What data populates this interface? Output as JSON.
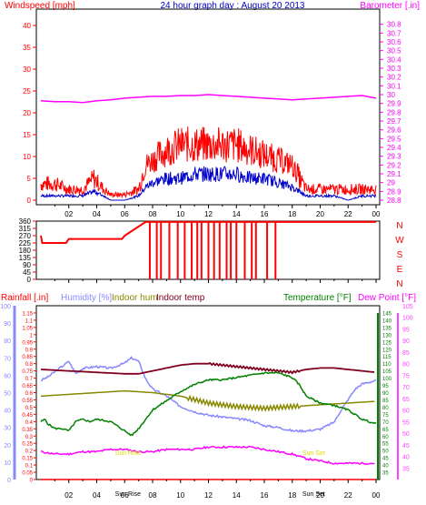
{
  "colors": {
    "background": "#ffffff",
    "frame": "#000000",
    "title": "#0000cc",
    "wind": "#ff0000",
    "gust_avg": "#0000cc",
    "barometer": "#ff00ff",
    "direction": "#ff0000",
    "rain": "#ff0000",
    "humidity": "#8888ff",
    "indoor_hum": "#888800",
    "indoor_temp": "#800020",
    "temperature": "#008000",
    "dewpoint": "#ff00ff",
    "rain_line": "#ff0000",
    "events": "#dddd00"
  },
  "chart_data": [
    {
      "type": "line",
      "title": "24 hour graph day : August 20 2013",
      "ylabel_left": "Windspeed [mph]",
      "ylabel_right": "Barometer [.in]",
      "x_ticks": [
        "02",
        "04",
        "06",
        "08",
        "10",
        "12",
        "14",
        "16",
        "18",
        "20",
        "22",
        "00"
      ],
      "x_range": [
        0,
        24
      ],
      "y_left_range": [
        0,
        40
      ],
      "y_left_ticks": [
        "0",
        "5",
        "10",
        "15",
        "20",
        "25",
        "30",
        "35",
        "40"
      ],
      "y_right_range": [
        28.8,
        30.9
      ],
      "y_right_ticks": [
        "28.8",
        "28.9",
        "29",
        "29.1",
        "29.2",
        "29.3",
        "29.4",
        "29.5",
        "29.6",
        "29.7",
        "29.8",
        "29.9",
        "30",
        "30.1",
        "30.2",
        "30.3",
        "30.4",
        "30.5",
        "30.6",
        "30.7",
        "30.8"
      ],
      "series": [
        {
          "axis": "right",
          "x": [
            0,
            1,
            2,
            3,
            4,
            5,
            6,
            7,
            8,
            9,
            10,
            11,
            12,
            13,
            14,
            15,
            16,
            17,
            18,
            19,
            20,
            21,
            22,
            23,
            24
          ],
          "values": [
            29.93,
            29.92,
            29.92,
            29.91,
            29.93,
            29.94,
            29.96,
            29.97,
            29.98,
            29.98,
            29.99,
            29.99,
            30.0,
            29.99,
            29.98,
            29.97,
            29.96,
            29.95,
            29.94,
            29.95,
            29.96,
            29.97,
            29.98,
            29.99,
            29.96
          ]
        },
        {
          "axis": "left",
          "x": [
            0,
            1,
            2,
            3,
            3.8,
            4.5,
            5,
            6,
            7,
            7.5,
            8,
            9,
            10,
            11,
            12,
            13,
            14,
            15,
            16,
            17,
            18,
            18.5,
            19,
            20,
            21,
            22,
            23,
            24
          ],
          "values": [
            3,
            3,
            2,
            2,
            4,
            2,
            1,
            1,
            2,
            7,
            8,
            10,
            11,
            11,
            11,
            11,
            11,
            10,
            9,
            8,
            7,
            4,
            2,
            2,
            2,
            2,
            2,
            2
          ]
        },
        {
          "axis": "left",
          "x": [
            0,
            1,
            2,
            3,
            3.8,
            4.5,
            5,
            6,
            7,
            7.5,
            8,
            9,
            10,
            11,
            12,
            13,
            14,
            15,
            16,
            17,
            18,
            18.5,
            19,
            20,
            21,
            22,
            23,
            24
          ],
          "values": [
            1,
            1,
            1,
            1,
            2,
            1,
            0,
            0,
            1,
            3,
            4,
            5,
            5,
            6,
            6,
            6,
            6,
            5,
            5,
            4,
            3,
            2,
            1,
            1,
            1,
            0,
            1,
            1
          ]
        }
      ]
    },
    {
      "type": "line",
      "ylabel_right": [
        "N",
        "W",
        "S",
        "E",
        "N"
      ],
      "y_range": [
        0,
        360
      ],
      "y_ticks": [
        "0",
        "45",
        "90",
        "135",
        "180",
        "225",
        "270",
        "315",
        "360"
      ],
      "series": [
        {
          "x": [
            0,
            0.1,
            1.8,
            2.0,
            5.8,
            6.0,
            7.5,
            24
          ],
          "values": [
            270,
            225,
            225,
            250,
            250,
            270,
            355,
            355
          ]
        }
      ],
      "north_drop_times": [
        7.8,
        8.3,
        8.6,
        9.2,
        9.8,
        10.3,
        10.8,
        11.2,
        11.5,
        12.0,
        12.4,
        12.8,
        13.3,
        13.6,
        14.0,
        14.6,
        15.1,
        15.4,
        16.2,
        16.8
      ]
    },
    {
      "type": "line",
      "legend": [
        "Rainfall [.in]",
        "Humidity [%]",
        "Indoor hum",
        "Indoor temp",
        "Temperature [°F]",
        "Dew Point [°F]"
      ],
      "rain_range": [
        0,
        1.2
      ],
      "rain_ticks": [
        "0",
        "0.05",
        "0.1",
        "0.15",
        "0.2",
        "0.25",
        "0.3",
        "0.35",
        "0.4",
        "0.45",
        "0.5",
        "0.55",
        "0.6",
        "0.65",
        "0.7",
        "0.75",
        "0.8",
        "0.85",
        "0.9",
        "0.95",
        "1",
        "1.05",
        "1.1",
        "1.15"
      ],
      "humidity_range": [
        0,
        100
      ],
      "humidity_ticks": [
        "0",
        "10",
        "20",
        "30",
        "40",
        "50",
        "60",
        "70",
        "80",
        "90",
        "100"
      ],
      "temp_range": [
        30,
        150
      ],
      "temp_ticks": [
        "35",
        "40",
        "45",
        "50",
        "55",
        "60",
        "65",
        "70",
        "75",
        "80",
        "85",
        "90",
        "95",
        "100",
        "105",
        "110",
        "115",
        "120",
        "125",
        "130",
        "135",
        "140",
        "145"
      ],
      "dew_range": [
        30,
        105
      ],
      "dew_ticks": [
        "35",
        "40",
        "45",
        "50",
        "55",
        "60",
        "65",
        "70",
        "75",
        "80",
        "85",
        "90",
        "95",
        "100",
        "105"
      ],
      "event_labels": [
        {
          "text": "Sun Rise",
          "x": 6.3
        },
        {
          "text": "Sun Set",
          "x": 19.6
        }
      ],
      "bottom_labels": [
        "Sun Rise",
        "Sun Set"
      ],
      "series": [
        {
          "name": "Rainfall [.in]",
          "axis": "rain",
          "x": [
            0,
            24
          ],
          "values": [
            0,
            0
          ]
        },
        {
          "name": "Humidity [%]",
          "axis": "humidity",
          "x": [
            0,
            0.5,
            1,
            1.5,
            2,
            2.5,
            3,
            4,
            5,
            6,
            6.5,
            7,
            7.5,
            8,
            9,
            10,
            11,
            12,
            13,
            14,
            15,
            16,
            17,
            18,
            19,
            20,
            21,
            21.5,
            22,
            22.5,
            23,
            24
          ],
          "values": [
            57,
            59,
            62,
            65,
            68,
            61,
            64,
            65,
            64,
            67,
            70,
            68,
            58,
            52,
            48,
            42,
            39,
            37,
            36,
            35,
            34,
            31,
            30,
            28,
            28,
            29,
            33,
            40,
            46,
            52,
            55,
            57
          ]
        },
        {
          "name": "Indoor hum",
          "axis": "humidity",
          "x": [
            0,
            2,
            4,
            6,
            8,
            10,
            11,
            12,
            14,
            16,
            18,
            20,
            22,
            24
          ],
          "values": [
            48,
            49,
            50,
            51,
            50,
            48,
            46,
            44,
            42,
            41,
            42,
            43,
            44,
            45
          ]
        },
        {
          "name": "Indoor temp",
          "axis": "temp",
          "x": [
            0,
            2,
            4,
            6,
            7,
            8,
            9,
            10,
            11,
            12,
            13,
            14,
            15,
            16,
            17,
            18,
            19,
            20,
            21,
            22,
            23,
            24
          ],
          "values": [
            106,
            105,
            104,
            103,
            103,
            105,
            107,
            109,
            110,
            110,
            109,
            108,
            107,
            106,
            105,
            104,
            106,
            107,
            107,
            106,
            105,
            104
          ]
        },
        {
          "name": "Temperature [°F]",
          "axis": "dew",
          "x": [
            0,
            0.3,
            0.5,
            1,
            1.5,
            2,
            2.5,
            3,
            3.5,
            4,
            5,
            6,
            6.5,
            7,
            8,
            9,
            10,
            11,
            12,
            13,
            14,
            15,
            16,
            17,
            18,
            18.5,
            19,
            20,
            21,
            22,
            23,
            24
          ],
          "values": [
            55,
            56,
            54,
            52,
            52,
            51,
            55,
            56,
            55,
            56,
            55,
            51,
            49,
            52,
            60,
            64,
            68,
            71,
            73,
            73,
            74,
            75,
            76,
            76,
            74,
            71,
            66,
            63,
            62,
            60,
            56,
            54
          ]
        },
        {
          "name": "Dew Point [°F]",
          "axis": "dew",
          "x": [
            0,
            1,
            2,
            3,
            4,
            5,
            6,
            7,
            8,
            9,
            10,
            11,
            12,
            13,
            14,
            15,
            16,
            17,
            18,
            19,
            20,
            21,
            22,
            23,
            24
          ],
          "values": [
            42,
            41,
            41,
            42,
            42,
            43,
            43,
            42,
            42,
            43,
            43,
            43,
            44,
            44,
            44,
            44,
            43,
            42,
            41,
            39,
            38,
            37,
            37,
            37,
            37
          ]
        }
      ]
    }
  ]
}
